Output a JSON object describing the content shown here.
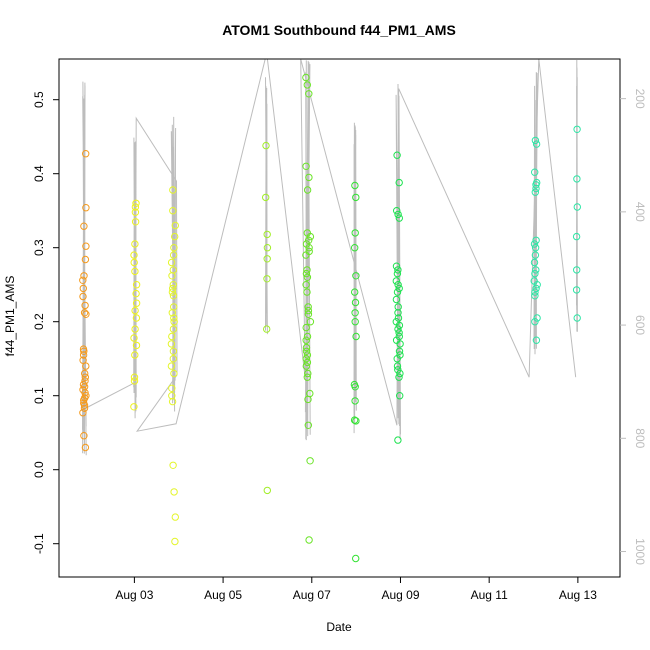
{
  "chart_data": {
    "type": "scatter",
    "title": "ATOM1 Southbound f44_PM1_AMS",
    "xlabel": "Date",
    "ylabel": "f44_PM1_AMS",
    "ylabel_right": "",
    "xlim": [
      0.3,
      12.95
    ],
    "ylim": [
      -0.145,
      0.555
    ],
    "y2lim": [
      1045,
      130
    ],
    "x_ticks": [
      {
        "value": 2,
        "label": "Aug 03"
      },
      {
        "value": 4,
        "label": "Aug 05"
      },
      {
        "value": 6,
        "label": "Aug 07"
      },
      {
        "value": 8,
        "label": "Aug 09"
      },
      {
        "value": 10,
        "label": "Aug 11"
      },
      {
        "value": 12,
        "label": "Aug 13"
      }
    ],
    "y_ticks": [
      -0.1,
      0.0,
      0.1,
      0.2,
      0.3,
      0.4,
      0.5
    ],
    "y2_ticks": [
      200,
      400,
      600,
      800,
      1000
    ],
    "colors": {
      "line": "#bdbdbd",
      "axis": "#000000",
      "right_axis": "#bdbdbd"
    },
    "clusters": [
      {
        "x_center": 0.87,
        "spread": 0.08,
        "color": "#f59a1c",
        "y": [
          0.427,
          0.354,
          0.329,
          0.302,
          0.284,
          0.262,
          0.256,
          0.245,
          0.234,
          0.222,
          0.212,
          0.21,
          0.163,
          0.16,
          0.155,
          0.148,
          0.14,
          0.13,
          0.125,
          0.12,
          0.115,
          0.112,
          0.108,
          0.104,
          0.1,
          0.097,
          0.094,
          0.09,
          0.087,
          0.083,
          0.077,
          0.046,
          0.03
        ]
      },
      {
        "x_center": 2.02,
        "spread": 0.07,
        "color": "#eef21d",
        "y": [
          0.36,
          0.355,
          0.348,
          0.335,
          0.305,
          0.29,
          0.28,
          0.268,
          0.25,
          0.238,
          0.225,
          0.215,
          0.205,
          0.19,
          0.178,
          0.168,
          0.155,
          0.125,
          0.12,
          0.085
        ]
      },
      {
        "x_center": 2.88,
        "spread": 0.09,
        "color": "#e4f52b",
        "y": [
          0.378,
          0.35,
          0.33,
          0.315,
          0.3,
          0.29,
          0.28,
          0.27,
          0.262,
          0.25,
          0.245,
          0.24,
          0.235,
          0.22,
          0.212,
          0.205,
          0.2,
          0.19,
          0.18,
          0.17,
          0.16,
          0.15,
          0.14,
          0.13,
          0.11,
          0.1,
          0.092,
          0.006,
          -0.03,
          -0.064,
          -0.097
        ]
      },
      {
        "x_center": 4.98,
        "spread": 0.04,
        "color": "#a2ee28",
        "y": [
          0.438,
          0.368,
          0.318,
          0.3,
          0.285,
          0.258,
          0.19,
          -0.028
        ]
      },
      {
        "x_center": 5.92,
        "spread": 0.11,
        "color": "#6be428",
        "y": [
          0.53,
          0.52,
          0.508,
          0.41,
          0.395,
          0.378,
          0.32,
          0.315,
          0.31,
          0.305,
          0.3,
          0.295,
          0.29,
          0.27,
          0.265,
          0.26,
          0.25,
          0.24,
          0.22,
          0.215,
          0.21,
          0.2,
          0.192,
          0.18,
          0.175,
          0.165,
          0.16,
          0.155,
          0.15,
          0.145,
          0.14,
          0.13,
          0.125,
          0.103,
          0.095,
          0.06,
          0.012,
          -0.095
        ]
      },
      {
        "x_center": 6.98,
        "spread": 0.05,
        "color": "#33e233",
        "y": [
          0.384,
          0.368,
          0.32,
          0.3,
          0.262,
          0.24,
          0.226,
          0.212,
          0.2,
          0.18,
          0.115,
          0.112,
          0.093,
          0.067,
          0.066,
          -0.12
        ]
      },
      {
        "x_center": 7.95,
        "spread": 0.09,
        "color": "#1ce24f",
        "y": [
          0.425,
          0.388,
          0.35,
          0.345,
          0.34,
          0.275,
          0.27,
          0.265,
          0.255,
          0.25,
          0.245,
          0.24,
          0.23,
          0.22,
          0.212,
          0.205,
          0.2,
          0.195,
          0.19,
          0.185,
          0.18,
          0.175,
          0.17,
          0.16,
          0.155,
          0.15,
          0.14,
          0.135,
          0.13,
          0.125,
          0.1,
          0.04
        ]
      },
      {
        "x_center": 11.05,
        "spread": 0.07,
        "color": "#2ee6a6",
        "y": [
          0.445,
          0.44,
          0.402,
          0.388,
          0.385,
          0.38,
          0.375,
          0.31,
          0.305,
          0.3,
          0.29,
          0.28,
          0.27,
          0.265,
          0.255,
          0.25,
          0.245,
          0.24,
          0.235,
          0.205,
          0.2,
          0.175
        ]
      },
      {
        "x_center": 11.98,
        "spread": 0.02,
        "color": "#2ee6a6",
        "y": [
          0.46,
          0.393,
          0.355,
          0.315,
          0.27,
          0.243,
          0.205
        ]
      }
    ],
    "track": [
      {
        "x": 0.8,
        "y": 0.08
      },
      {
        "x": 2.02,
        "y": 0.118
      },
      {
        "x": 2.04,
        "y": 0.475
      },
      {
        "x": 2.95,
        "y": 0.39
      },
      {
        "x": 2.96,
        "y": 0.128
      },
      {
        "x": 2.06,
        "y": 0.052
      },
      {
        "x": 2.94,
        "y": 0.062
      },
      {
        "x": 4.95,
        "y": 0.555
      },
      {
        "x": 5.0,
        "y": 0.555
      },
      {
        "x": 5.85,
        "y": 0.125
      },
      {
        "x": 5.75,
        "y": 0.555
      },
      {
        "x": 7.92,
        "y": 0.06
      },
      {
        "x": 7.96,
        "y": 0.515
      },
      {
        "x": 10.9,
        "y": 0.125
      },
      {
        "x": 11.12,
        "y": 0.555
      },
      {
        "x": 11.95,
        "y": 0.125
      }
    ]
  }
}
